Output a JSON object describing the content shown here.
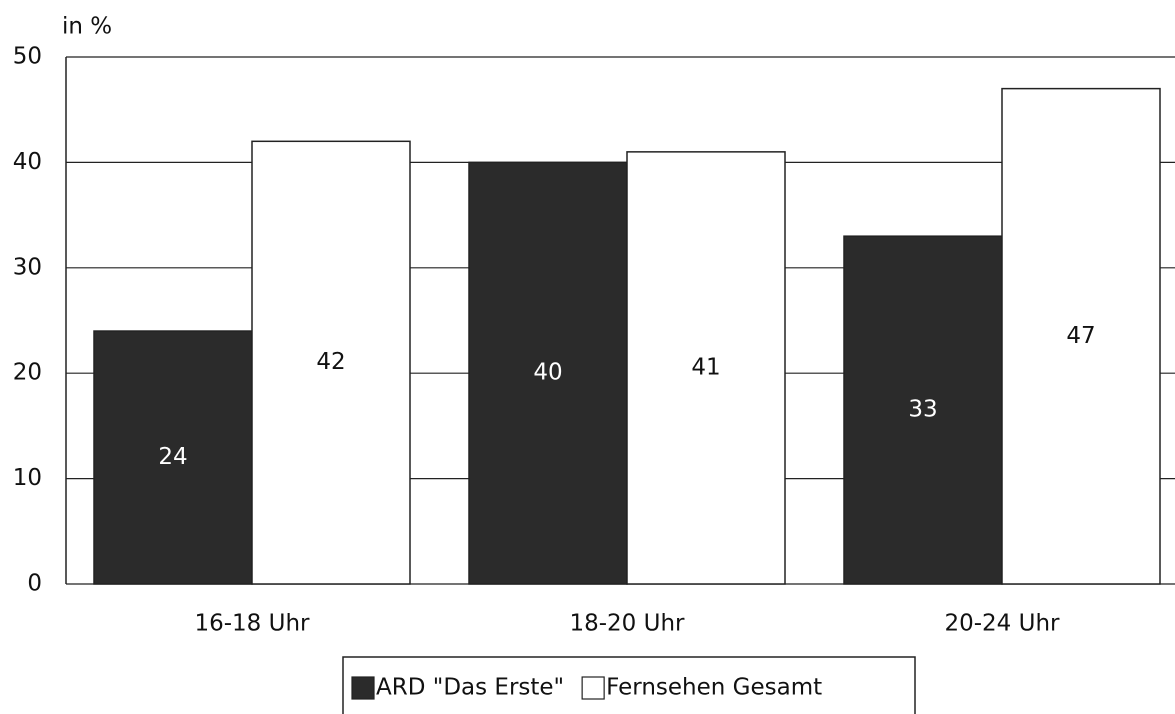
{
  "chart_data": {
    "type": "bar",
    "y_axis_label": "in %",
    "categories": [
      "16-18 Uhr",
      "18-20 Uhr",
      "20-24 Uhr"
    ],
    "series": [
      {
        "name": "ARD \"Das Erste\"",
        "color": "#2b2b2b",
        "values": [
          24,
          40,
          33
        ]
      },
      {
        "name": "Fernsehen Gesamt",
        "color": "#ffffff",
        "values": [
          42,
          41,
          47
        ]
      }
    ],
    "ylim": [
      0,
      50
    ],
    "yticks": [
      0,
      10,
      20,
      30,
      40,
      50
    ],
    "grid": true,
    "legend": "bottom"
  }
}
